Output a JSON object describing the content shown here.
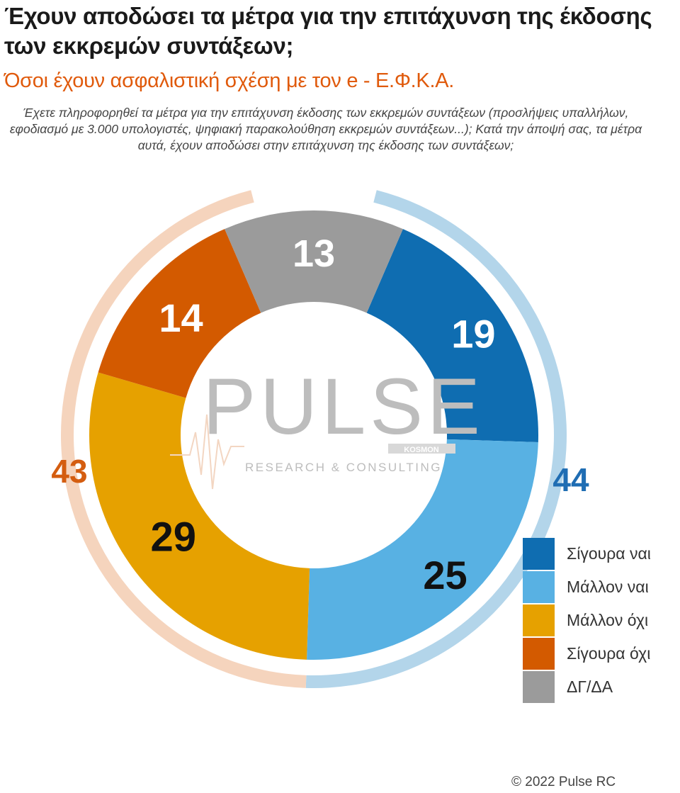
{
  "colors": {
    "title": "#1a1a1a",
    "subtitle": "#e05a0c",
    "question": "#444444",
    "yes_group": "#1f6db3",
    "no_group": "#d45d10",
    "outer_yes": "#b3d5ea",
    "outer_no": "#f5d4bd",
    "label_light": "#ffffff",
    "label_dark": "#111111"
  },
  "watermark": {
    "brand": "PULSE",
    "tagline": "RESEARCH & CONSULTING",
    "badge": "KOSMON"
  },
  "copyright": "© 2022 Pulse RC",
  "chart_data": {
    "type": "pie",
    "style": "donut",
    "title": "Έχουν αποδώσει τα μέτρα για την επιτάχυνση της έκδοσης των εκκρεμών συντάξεων;",
    "subtitle": "Όσοι έχουν ασφαλιστική σχέση με τον e - Ε.Φ.Κ.Α.",
    "question": "Έχετε πληροφορηθεί τα μέτρα για την επιτάχυνση έκδοσης των εκκρεμών συντάξεων (προσλήψεις υπαλλήλων, εφοδιασμό με 3.000 υπολογιστές, ψηφιακή παρακολούθηση εκκρεμών συντάξεων...); Κατά την άποψή σας, τα μέτρα αυτά, έχουν αποδώσει στην επιτάχυνση της έκδοσης των συντάξεων;",
    "slices": [
      {
        "label": "Σίγουρα ναι",
        "value": 19,
        "color": "#0f6db1"
      },
      {
        "label": "Μάλλον ναι",
        "value": 25,
        "color": "#58b1e3"
      },
      {
        "label": "Μάλλον όχι",
        "value": 29,
        "color": "#e6a100"
      },
      {
        "label": "Σίγουρα όχι",
        "value": 14,
        "color": "#d35a00"
      },
      {
        "label": "ΔΓ/ΔΑ",
        "value": 13,
        "color": "#9b9b9b"
      }
    ],
    "groups": [
      {
        "value": 44,
        "color": "#1f6db3"
      },
      {
        "value": 43,
        "color": "#d45d10"
      }
    ],
    "legend_position": "right"
  }
}
